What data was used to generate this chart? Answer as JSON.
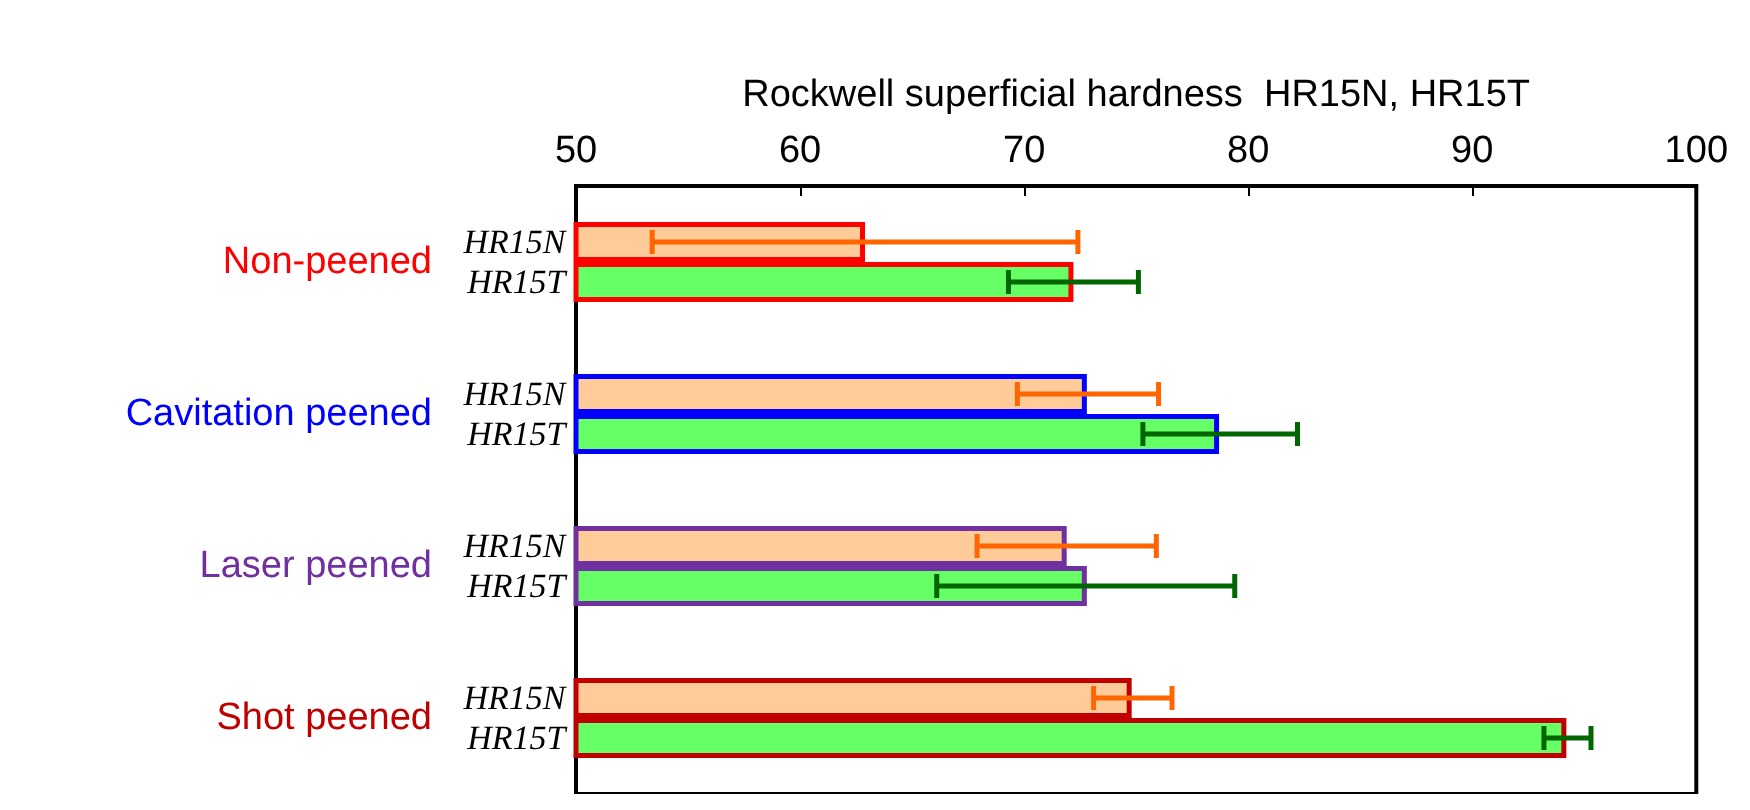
{
  "chart_data": {
    "type": "bar",
    "orientation": "horizontal",
    "xlabel": "Rockwell superficial hardness  HR15N, HR15T",
    "categories": [
      "Non-peened",
      "Cavitation peened",
      "Laser peened",
      "Shot peened"
    ],
    "series": [
      {
        "name": "HR15N",
        "color": "#ffcc99",
        "values": [
          62.9,
          72.8,
          71.9,
          74.8
        ],
        "errors": [
          [
            53.4,
            72.4
          ],
          [
            69.7,
            76.0
          ],
          [
            67.9,
            75.9
          ],
          [
            73.1,
            76.6
          ]
        ]
      },
      {
        "name": "HR15T",
        "color": "#66ff66",
        "values": [
          72.2,
          78.7,
          72.8,
          94.2
        ],
        "errors": [
          [
            69.3,
            75.1
          ],
          [
            75.3,
            82.2
          ],
          [
            66.1,
            79.4
          ],
          [
            93.2,
            95.3
          ]
        ]
      }
    ],
    "xlim": [
      50,
      100
    ],
    "xticks": [
      50,
      60,
      70,
      80,
      90,
      100
    ],
    "grid": false,
    "legend": false
  }
}
